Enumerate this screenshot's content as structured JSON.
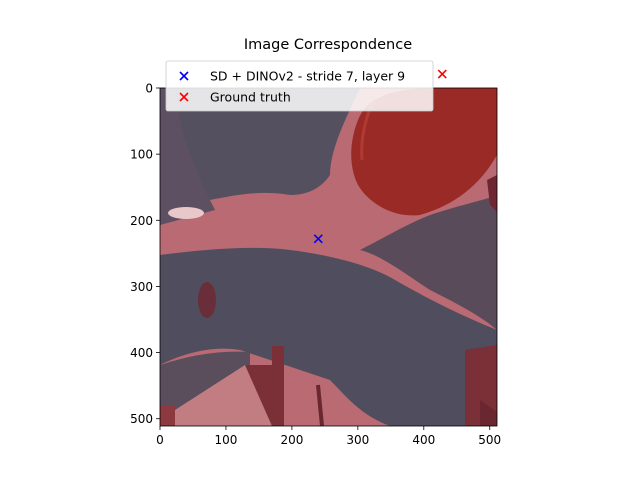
{
  "chart_data": {
    "type": "scatter",
    "title": "Image Correspondence",
    "xlabel": "",
    "ylabel": "",
    "xlim": [
      0,
      511
    ],
    "ylim": [
      511,
      0
    ],
    "xticks": [
      0,
      100,
      200,
      300,
      400,
      500
    ],
    "yticks": [
      0,
      100,
      200,
      300,
      400,
      500
    ],
    "grid": false,
    "legend_position": "upper-left",
    "background": "medical image overlay (grayscale scan with red segmentation mask)",
    "series": [
      {
        "name": "SD + DINOv2 - stride 7, layer 9",
        "marker": "x",
        "color": "#0000ff",
        "points": [
          {
            "x": 240,
            "y": 228
          }
        ]
      },
      {
        "name": "Ground truth",
        "marker": "x",
        "color": "#ff0000",
        "points": [
          {
            "x": 428,
            "y": -21
          }
        ]
      }
    ]
  }
}
